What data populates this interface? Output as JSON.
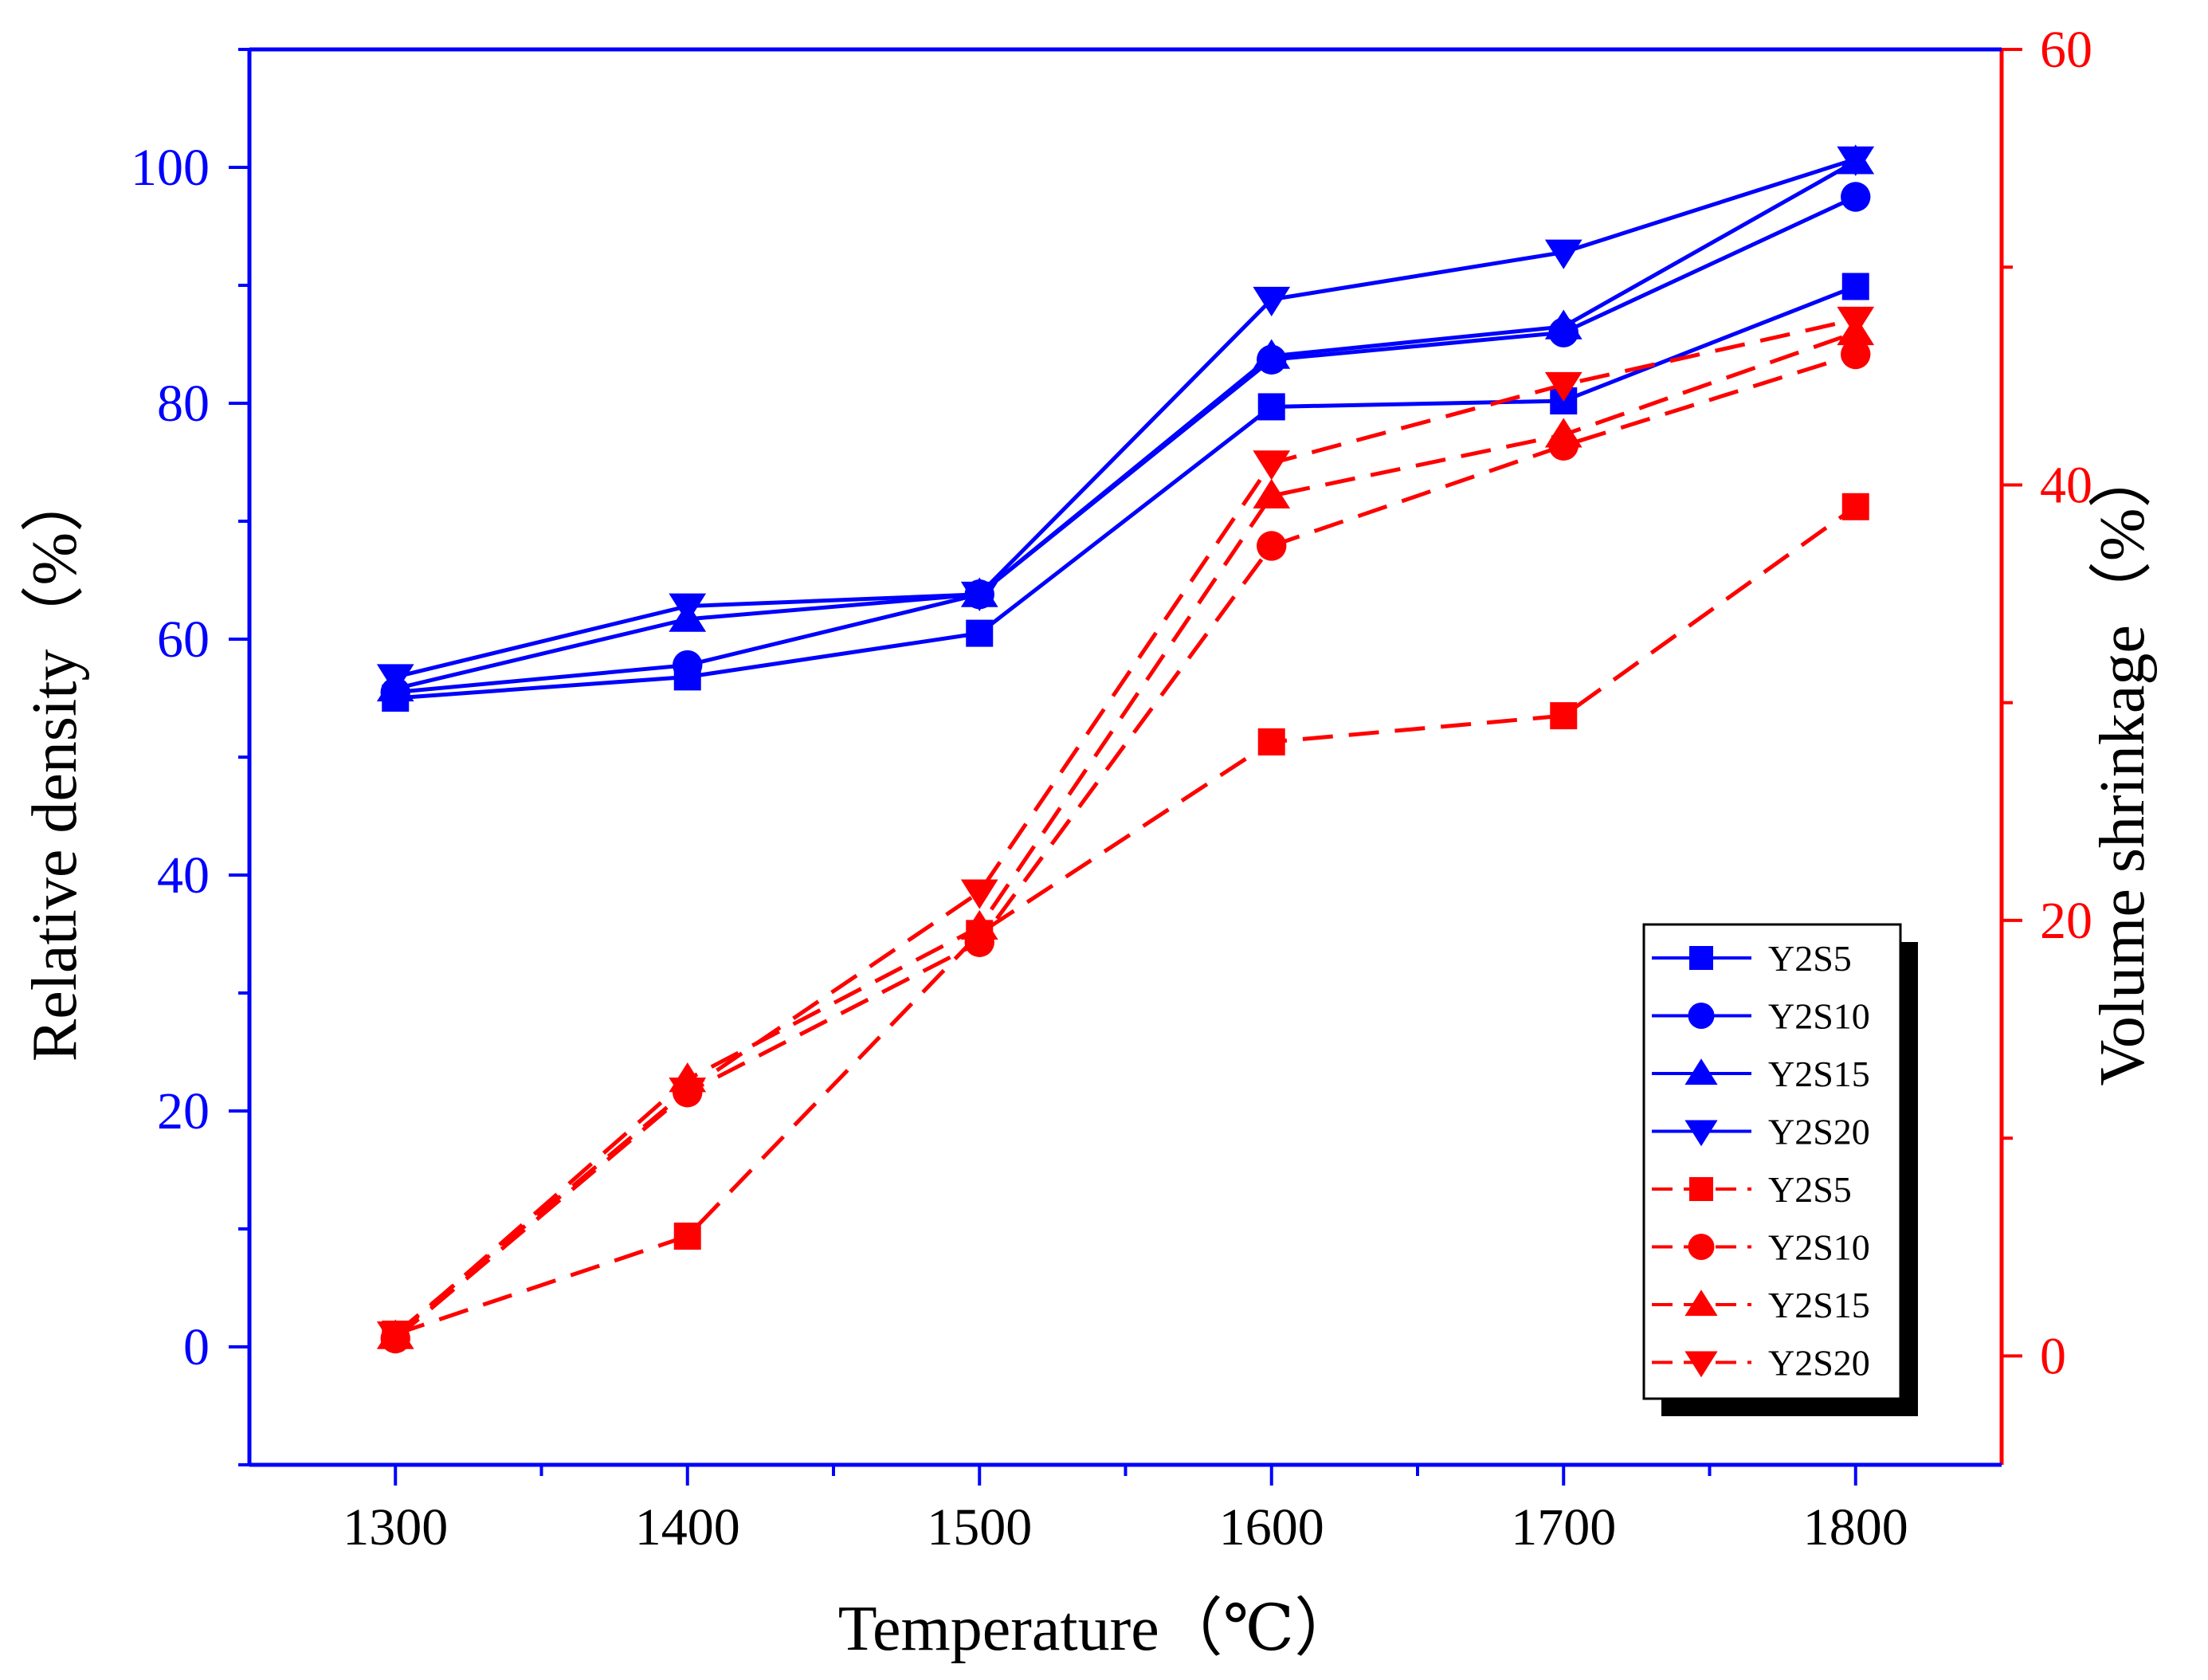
{
  "chart_data": {
    "type": "line",
    "title": "",
    "xlabel": "Temperature（℃）",
    "ylabel_left": "Relative density（%）",
    "ylabel_right": "Volume shrinkage（%）",
    "x": [
      1300,
      1400,
      1500,
      1600,
      1700,
      1800
    ],
    "x_ticks": [
      "1300",
      "1400",
      "1500",
      "1600",
      "1700",
      "1800"
    ],
    "xlim": [
      1250,
      1850
    ],
    "ylim_left": [
      -10,
      110
    ],
    "yticks_left": [
      "0",
      "20",
      "40",
      "60",
      "80",
      "100"
    ],
    "ylim_right": [
      -5,
      60
    ],
    "yticks_right": [
      "0",
      "20",
      "40",
      "60"
    ],
    "grid": false,
    "legend_position": "bottom-right",
    "colors": {
      "density": "#0000ff",
      "shrinkage": "#ff0000",
      "left_axis": "#0000ff",
      "right_axis": "#ff0000",
      "bottom_axis": "#0000ff"
    },
    "series": [
      {
        "name": "Y2S5",
        "axis": "left",
        "marker": "square",
        "line": "solid",
        "values": [
          55.0,
          56.8,
          60.5,
          79.7,
          80.2,
          89.9
        ]
      },
      {
        "name": "Y2S10",
        "axis": "left",
        "marker": "circle",
        "line": "solid",
        "values": [
          55.5,
          57.8,
          63.8,
          83.7,
          86.0,
          97.5
        ]
      },
      {
        "name": "Y2S15",
        "axis": "left",
        "marker": "triangle-up",
        "line": "solid",
        "values": [
          55.8,
          61.7,
          63.8,
          84.0,
          86.5,
          100.5
        ]
      },
      {
        "name": "Y2S20",
        "axis": "left",
        "marker": "triangle-down",
        "line": "solid",
        "values": [
          56.8,
          62.8,
          63.8,
          88.8,
          92.8,
          100.7
        ]
      },
      {
        "name": "Y2S5",
        "axis": "right",
        "marker": "square",
        "line": "dashed",
        "values": [
          1.0,
          5.5,
          19.4,
          28.2,
          29.4,
          39.0
        ]
      },
      {
        "name": "Y2S10",
        "axis": "right",
        "marker": "circle",
        "line": "dashed",
        "values": [
          0.8,
          12.1,
          19.0,
          37.2,
          41.8,
          46.0
        ]
      },
      {
        "name": "Y2S15",
        "axis": "right",
        "marker": "triangle-up",
        "line": "dashed",
        "values": [
          0.9,
          12.7,
          19.7,
          39.5,
          42.3,
          47.0
        ]
      },
      {
        "name": "Y2S20",
        "axis": "right",
        "marker": "triangle-down",
        "line": "dashed",
        "values": [
          1.0,
          12.2,
          21.3,
          41.0,
          44.6,
          47.6
        ]
      }
    ]
  }
}
